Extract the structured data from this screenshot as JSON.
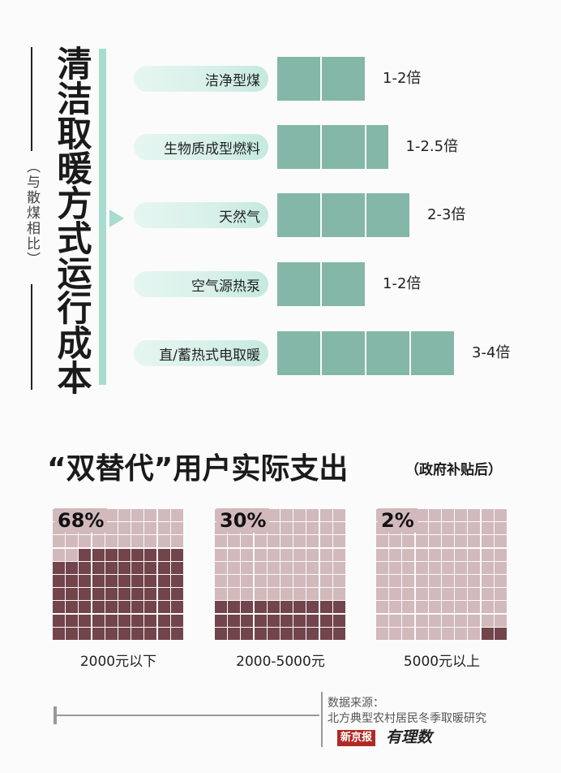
{
  "section1": {
    "title": "清洁取暖方式运行成本",
    "subtitle": "（与散煤相比）"
  },
  "chart_data": [
    {
      "type": "bar",
      "title": "清洁取暖方式运行成本",
      "subtitle": "（与散煤相比）",
      "categories": [
        "洁净型煤",
        "生物质成型燃料",
        "天然气",
        "空气源热泵",
        "直/蓄热式电取暖"
      ],
      "values": [
        2,
        2.5,
        3,
        2,
        4
      ],
      "value_labels": [
        "1-2倍",
        "1-2.5倍",
        "2-3倍",
        "1-2倍",
        "3-4倍"
      ],
      "ranges": [
        [
          1,
          2
        ],
        [
          1,
          2.5
        ],
        [
          2,
          3
        ],
        [
          1,
          2
        ],
        [
          3,
          4
        ]
      ],
      "xlim": [
        0,
        4
      ],
      "grid": false,
      "bar_color": "#84b7a8",
      "pill_color": "#d7f0e9"
    },
    {
      "type": "waffle",
      "title": "“双替代”用户实际支出",
      "subtitle": "（政府补贴后）",
      "grid_size": 100,
      "categories": [
        "2000元以下",
        "2000-5000元",
        "5000元以上"
      ],
      "values": [
        68,
        30,
        2
      ],
      "value_labels": [
        "68%",
        "30%",
        "2%"
      ],
      "filled_color": "#72444b",
      "empty_color": "#d1b9bc"
    }
  ],
  "section2": {
    "title": "“双替代”用户实际支出",
    "note": "（政府补贴后）"
  },
  "footer": {
    "source_label": "数据来源：",
    "source_text": "北方典型农村居民冬季取暖研究",
    "logo_text": "新京报",
    "logo_script": "有理数"
  }
}
